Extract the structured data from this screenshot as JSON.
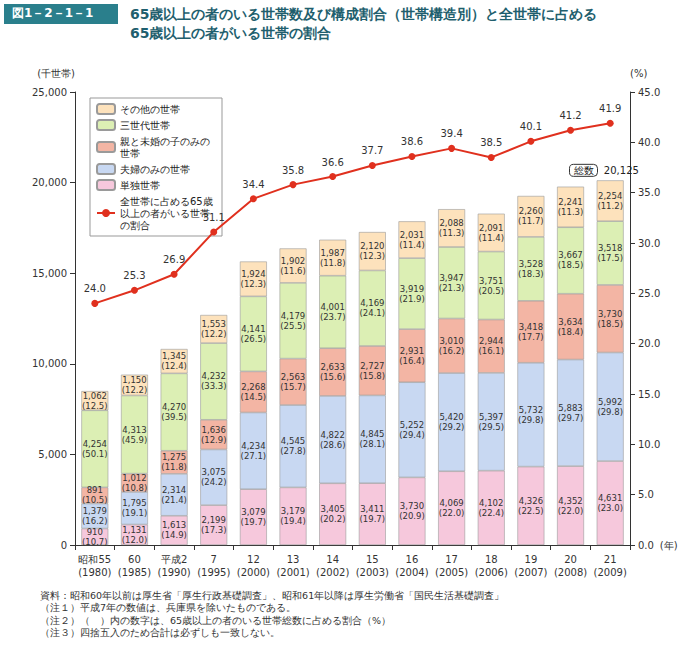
{
  "chart_data": {
    "type": "bar",
    "figure_label": "図1－2－1－1",
    "title": "65歳以上の者のいる世帯数及び構成割合（世帯構造別）と全世帯に占める\n65歳以上の者がいる世帯の割合",
    "y_label": "(千世帯)",
    "y2_label": "(%)",
    "x_label": "(年)",
    "stacked": true,
    "data_labels": true,
    "grid": false,
    "legend": "upper left",
    "categories": [
      "昭和55\n(1980)",
      "60\n(1985)",
      "平成2\n(1990)",
      "7\n(1995)",
      "12\n(2000)",
      "13\n(2001)",
      "14\n(2002)",
      "15\n(2003)",
      "16\n(2004)",
      "17\n(2005)",
      "18\n(2006)",
      "19\n(2007)",
      "20\n(2008)",
      "21\n(2009)"
    ],
    "ylim": [
      0,
      25000
    ],
    "yticks": [
      0,
      {
        "value": 5000,
        "label": "5,000"
      },
      {
        "value": 10000,
        "label": "10,000"
      },
      {
        "value": 15000,
        "label": "15,000"
      },
      {
        "value": 20000,
        "label": "20,000"
      },
      {
        "value": 25000,
        "label": "25,000"
      }
    ],
    "y2lim": [
      0,
      45
    ],
    "y2ticks": [
      {
        "value": 0,
        "label": "0.0"
      },
      {
        "value": 5,
        "label": "5.0"
      },
      {
        "value": 10,
        "label": "10.0"
      },
      {
        "value": 15,
        "label": "15.0"
      },
      {
        "value": 20,
        "label": "20.0"
      },
      {
        "value": 25,
        "label": "25.0"
      },
      {
        "value": 30,
        "label": "30.0"
      },
      {
        "value": 35,
        "label": "35.0"
      },
      {
        "value": 40,
        "label": "40.0"
      },
      {
        "value": 45,
        "label": "45.0"
      }
    ],
    "series": [
      {
        "name": "単独世帯",
        "type": "bar",
        "color": "#f6c8dc",
        "values": [
          910,
          1131,
          1613,
          2199,
          3079,
          3179,
          3405,
          3411,
          3730,
          4069,
          4102,
          4326,
          4352,
          4631
        ],
        "value_labels": [
          "910\n(10.7)",
          "1,131\n(12.0)",
          "1,613\n(14.9)",
          "2,199\n(17.3)",
          "3,079\n(19.7)",
          "3,179\n(19.4)",
          "3,405\n(20.2)",
          "3,411\n(19.7)",
          "3,730\n(20.9)",
          "4,069\n(22.0)",
          "4,102\n(22.4)",
          "4,326\n(22.5)",
          "4,352\n(22.0)",
          "4,631\n(23.0)"
        ]
      },
      {
        "name": "夫婦のみの世帯",
        "type": "bar",
        "color": "#c8d8f2",
        "values": [
          1379,
          1795,
          2314,
          3075,
          4234,
          4545,
          4822,
          4845,
          5252,
          5420,
          5397,
          5732,
          5883,
          5992
        ],
        "value_labels": [
          "1,379\n(16.2)",
          "1,795\n(19.1)",
          "2,314\n(21.4)",
          "3,075\n(24.2)",
          "4,234\n(27.1)",
          "4,545\n(27.8)",
          "4,822\n(28.6)",
          "4,845\n(28.1)",
          "5,252\n(29.4)",
          "5,420\n(29.2)",
          "5,397\n(29.5)",
          "5,732\n(29.8)",
          "5,883\n(29.7)",
          "5,992\n(29.8)"
        ]
      },
      {
        "name": "親と未婚の子のみの世帯",
        "type": "bar",
        "color": "#f3b5a4",
        "values": [
          891,
          1012,
          1275,
          1636,
          2268,
          2563,
          2633,
          2727,
          2931,
          3010,
          2944,
          3418,
          3634,
          3730
        ],
        "value_labels": [
          "891\n(10.5)",
          "1,012\n(10.8)",
          "1,275\n(11.8)",
          "1,636\n(12.9)",
          "2,268\n(14.5)",
          "2,563\n(15.7)",
          "2,633\n(15.6)",
          "2,727\n(15.8)",
          "2,931\n(16.4)",
          "3,010\n(16.2)",
          "2,944\n(16.1)",
          "3,418\n(17.7)",
          "3,634\n(18.4)",
          "3,730\n(18.5)"
        ]
      },
      {
        "name": "三世代世帯",
        "type": "bar",
        "color": "#dcefb4",
        "values": [
          4254,
          4313,
          4270,
          4232,
          4141,
          4179,
          4001,
          4169,
          3919,
          3947,
          3751,
          3528,
          3667,
          3518
        ],
        "value_labels": [
          "4,254\n(50.1)",
          "4,313\n(45.9)",
          "4,270\n(39.5)",
          "4,232\n(33.3)",
          "4,141\n(26.5)",
          "4,179\n(25.5)",
          "4,001\n(23.7)",
          "4,169\n(24.1)",
          "3,919\n(21.9)",
          "3,947\n(21.3)",
          "3,751\n(20.5)",
          "3,528\n(18.3)",
          "3,667\n(18.5)",
          "3,518\n(17.5)"
        ]
      },
      {
        "name": "その他の世帯",
        "type": "bar",
        "color": "#fde2bc",
        "values": [
          1062,
          1150,
          1345,
          1553,
          1924,
          1902,
          1987,
          2120,
          2031,
          2088,
          2091,
          2260,
          2241,
          2254
        ],
        "value_labels": [
          "1,062\n(12.5)",
          "1,150\n(12.2)",
          "1,345\n(12.4)",
          "1,553\n(12.2)",
          "1,924\n(12.3)",
          "1,902\n(11.6)",
          "1,987\n(11.8)",
          "2,120\n(12.3)",
          "2,031\n(11.4)",
          "2,088\n(11.3)",
          "2,091\n(11.4)",
          "2,260\n(11.7)",
          "2,241\n(11.3)",
          "2,254\n(11.2)"
        ]
      },
      {
        "name": "全世帯に占める65歳以上の者がいる世帯の割合",
        "type": "line",
        "axis": "y2",
        "color": "#e0301e",
        "marker": "circle",
        "values": [
          24.0,
          25.3,
          26.9,
          31.1,
          34.4,
          35.8,
          36.6,
          37.7,
          38.6,
          39.4,
          38.5,
          40.1,
          41.2,
          41.9
        ],
        "value_labels": [
          "24.0",
          "25.3",
          "26.9",
          "31.1",
          "34.4",
          "35.8",
          "36.6",
          "37.7",
          "38.6",
          "39.4",
          "38.5",
          "40.1",
          "41.2",
          "41.9"
        ]
      }
    ],
    "annotations": [
      {
        "text": "総数",
        "value": 20125,
        "value_label": "20,125",
        "category": "21\n(2009)"
      }
    ],
    "notes": [
      "資料：昭和60年以前は厚生省「厚生行政基礎調査」、昭和61年以降は厚生労働省「国民生活基礎調査」",
      "（注１）平成7年の数値は、兵庫県を除いたものである。",
      "（注２）（　）内の数字は、65歳以上の者のいる世帯総数に占める割合（%）",
      "（注３）四捨五入のため合計は必ずしも一致しない。"
    ]
  }
}
